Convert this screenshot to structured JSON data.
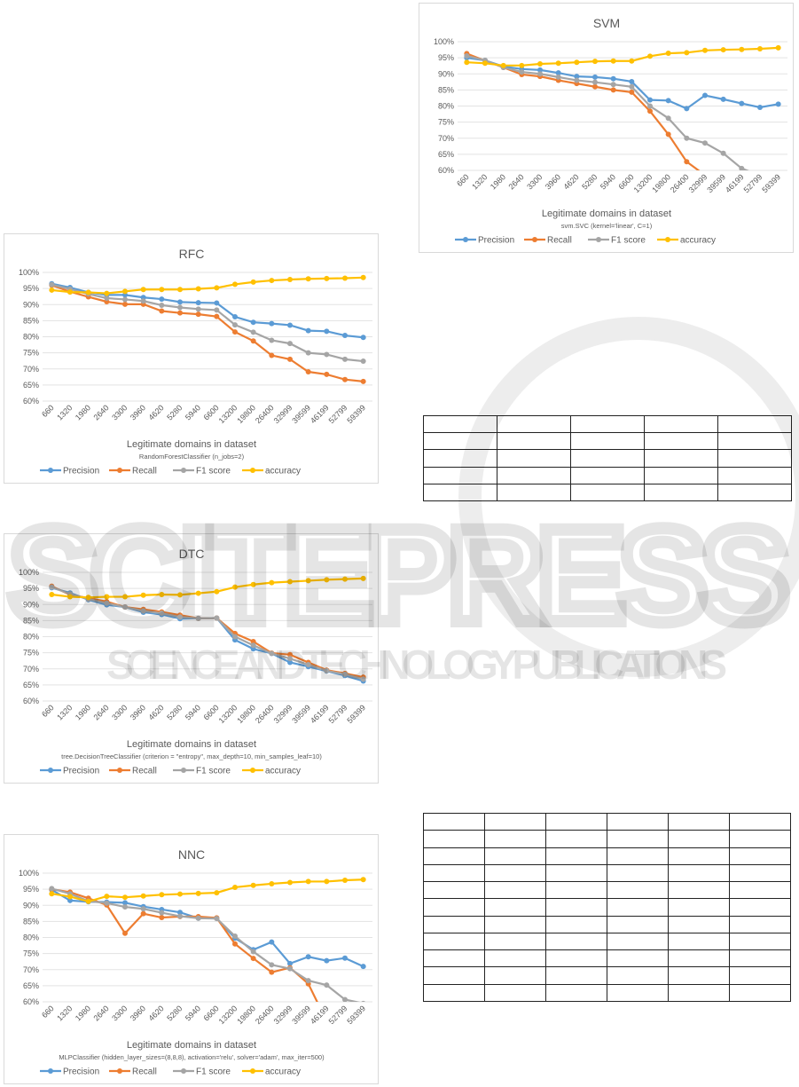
{
  "colors": {
    "Precision": "#5B9BD5",
    "Recall": "#ED7D31",
    "F1 score": "#A5A5A5",
    "accuracy": "#FFC000",
    "grid": "#e3e3e3",
    "axis_text": "#595959"
  },
  "watermark": {
    "text": "SCITEPRESS",
    "subtext": "SCIENCE AND TECHNOLOGY PUBLICATIONS"
  },
  "chart_data": [
    {
      "id": "rfc",
      "type": "line",
      "title": "RFC",
      "xlabel": "Legitimate domains in dataset",
      "subtitle": "RandomForestClassifier (n_jobs=2)",
      "ylim": [
        60,
        100
      ],
      "yticks": [
        "60%",
        "65%",
        "70%",
        "75%",
        "80%",
        "85%",
        "90%",
        "95%",
        "100%"
      ],
      "grid": true,
      "legend": "bottom",
      "categories": [
        "660",
        "1320",
        "1980",
        "2640",
        "3300",
        "3960",
        "4620",
        "5280",
        "5940",
        "6600",
        "13200",
        "19800",
        "26400",
        "32999",
        "39599",
        "46199",
        "52799",
        "59399"
      ],
      "series": [
        {
          "name": "Precision",
          "values": [
            96.5,
            95.3,
            93.8,
            93,
            93,
            92.2,
            91.7,
            90.8,
            90.6,
            90.5,
            86.2,
            84.5,
            84.1,
            83.6,
            81.9,
            81.7,
            80.4,
            79.8
          ]
        },
        {
          "name": "Recall",
          "values": [
            96,
            94,
            92.4,
            90.9,
            90.1,
            90.1,
            88,
            87.4,
            87,
            86.3,
            81.5,
            78.7,
            74.2,
            73,
            69.1,
            68.3,
            66.7,
            66.1
          ]
        },
        {
          "name": "F1 score",
          "values": [
            96.2,
            94.8,
            93.3,
            92,
            91.6,
            91.1,
            89.8,
            89.1,
            88.6,
            88.3,
            83.7,
            81.4,
            78.9,
            77.9,
            75,
            74.5,
            73,
            72.4
          ]
        },
        {
          "name": "accuracy",
          "values": [
            94.5,
            93.9,
            93.8,
            93.5,
            94.1,
            94.7,
            94.7,
            94.7,
            94.9,
            95.2,
            96.3,
            97,
            97.5,
            97.8,
            98,
            98.1,
            98.2,
            98.4
          ]
        }
      ]
    },
    {
      "id": "dtc",
      "type": "line",
      "title": "DTC",
      "xlabel": "Legitimate domains in dataset",
      "subtitle": "tree.DecisionTreeClassifier (criterion = \"entropy\", max_depth=10, min_samples_leaf=10)",
      "ylim": [
        60,
        100
      ],
      "yticks": [
        "60%",
        "65%",
        "70%",
        "75%",
        "80%",
        "85%",
        "90%",
        "95%",
        "100%"
      ],
      "grid": true,
      "legend": "bottom",
      "categories": [
        "660",
        "1320",
        "1980",
        "2640",
        "3300",
        "3960",
        "4620",
        "5280",
        "5940",
        "6600",
        "13200",
        "19800",
        "26400",
        "32999",
        "39599",
        "46199",
        "52799",
        "59399"
      ],
      "series": [
        {
          "name": "Precision",
          "values": [
            95.2,
            93.6,
            91.5,
            89.9,
            89.2,
            87.6,
            86.9,
            85.6,
            85.7,
            85.8,
            79,
            76.2,
            74.8,
            72,
            70.7,
            69.3,
            67.9,
            66.2
          ]
        },
        {
          "name": "Recall",
          "values": [
            95.7,
            93,
            92,
            90.9,
            89.2,
            88.5,
            87.7,
            86.7,
            85.7,
            85.8,
            81,
            78.5,
            74.9,
            74.4,
            72,
            69.6,
            68.6,
            67.4
          ]
        },
        {
          "name": "F1 score",
          "values": [
            95.4,
            93.3,
            91.7,
            90.4,
            89.2,
            88,
            87.3,
            86.1,
            85.7,
            85.8,
            80,
            77.3,
            74.8,
            73.2,
            71.3,
            69.4,
            68.3,
            66.8
          ]
        },
        {
          "name": "accuracy",
          "values": [
            93.1,
            92.4,
            92.2,
            92.4,
            92.4,
            92.9,
            93.1,
            93,
            93.5,
            94,
            95.4,
            96.2,
            96.8,
            97.1,
            97.4,
            97.7,
            97.9,
            98.1
          ]
        }
      ]
    },
    {
      "id": "nnc",
      "type": "line",
      "title": "NNC",
      "xlabel": "Legitimate domains in dataset",
      "subtitle": "MLPClassifier (hidden_layer_sizes=(8,8,8), activation='relu', solver='adam', max_iter=500)",
      "ylim": [
        60,
        100
      ],
      "yticks": [
        "60%",
        "65%",
        "70%",
        "75%",
        "80%",
        "85%",
        "90%",
        "95%",
        "100%"
      ],
      "grid": true,
      "legend": "bottom",
      "categories": [
        "660",
        "1320",
        "1980",
        "2640",
        "3300",
        "3960",
        "4620",
        "5280",
        "5940",
        "6600",
        "13200",
        "19800",
        "26400",
        "32999",
        "39599",
        "46199",
        "52799",
        "59399"
      ],
      "series": [
        {
          "name": "Precision",
          "values": [
            94.8,
            91.5,
            91.1,
            91,
            90.8,
            89.6,
            88.7,
            87.8,
            86,
            86,
            79.8,
            76.2,
            78.6,
            71.9,
            74,
            72.8,
            73.6,
            71
          ]
        },
        {
          "name": "Recall",
          "values": [
            95,
            94.1,
            92.2,
            90.1,
            81.3,
            87.4,
            86.2,
            86.5,
            86.5,
            86.1,
            78,
            73.5,
            69.2,
            70.6,
            65.6,
            54,
            null,
            null
          ]
        },
        {
          "name": "F1 score",
          "values": [
            95.2,
            93.6,
            91.3,
            90.7,
            89.5,
            88.9,
            87.7,
            86.6,
            86,
            85.9,
            80.4,
            75.6,
            71.5,
            70.3,
            66.6,
            65.2,
            60.7,
            59.5
          ]
        },
        {
          "name": "accuracy",
          "values": [
            93.6,
            92.7,
            91.2,
            92.8,
            92.5,
            92.9,
            93.3,
            93.5,
            93.7,
            93.9,
            95.6,
            96.2,
            96.7,
            97.1,
            97.4,
            97.4,
            97.8,
            98
          ]
        }
      ]
    },
    {
      "id": "svm",
      "type": "line",
      "title": "SVM",
      "xlabel": "Legitimate domains in dataset",
      "subtitle": "svm.SVC (kernel='linear', C=1)",
      "ylim": [
        60,
        100
      ],
      "yticks": [
        "60%",
        "65%",
        "70%",
        "75%",
        "80%",
        "85%",
        "90%",
        "95%",
        "100%"
      ],
      "grid": true,
      "legend": "bottom",
      "categories": [
        "660",
        "1320",
        "1980",
        "2640",
        "3300",
        "3960",
        "4620",
        "5280",
        "5940",
        "6600",
        "13200",
        "19800",
        "26400",
        "32999",
        "39599",
        "46199",
        "52799",
        "59399"
      ],
      "series": [
        {
          "name": "Precision",
          "values": [
            95,
            94.2,
            92.3,
            91.5,
            91.2,
            90.3,
            89.2,
            89,
            88.5,
            87.6,
            81.9,
            81.7,
            79.2,
            83.3,
            82.1,
            80.8,
            79.6,
            80.6
          ]
        },
        {
          "name": "Recall",
          "values": [
            96.3,
            94.1,
            92,
            89.8,
            89.2,
            88,
            87,
            86,
            85,
            84.3,
            78.4,
            71.2,
            62.7,
            58.5,
            null,
            null,
            null,
            null
          ]
        },
        {
          "name": "F1 score",
          "values": [
            95.6,
            94.2,
            92,
            90.6,
            90,
            89,
            88,
            87.4,
            86.7,
            86,
            80,
            76.2,
            70,
            68.5,
            65.3,
            60.6,
            58.4,
            null
          ]
        },
        {
          "name": "accuracy",
          "values": [
            93.6,
            93.3,
            92.6,
            92.6,
            93.1,
            93.3,
            93.6,
            93.9,
            94,
            94,
            95.5,
            96.4,
            96.6,
            97.3,
            97.5,
            97.6,
            97.8,
            98.1
          ]
        }
      ]
    }
  ]
}
